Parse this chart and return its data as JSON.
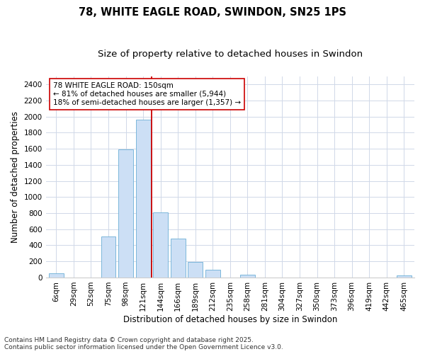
{
  "title": "78, WHITE EAGLE ROAD, SWINDON, SN25 1PS",
  "subtitle": "Size of property relative to detached houses in Swindon",
  "xlabel": "Distribution of detached houses by size in Swindon",
  "ylabel": "Number of detached properties",
  "categories": [
    "6sqm",
    "29sqm",
    "52sqm",
    "75sqm",
    "98sqm",
    "121sqm",
    "144sqm",
    "166sqm",
    "189sqm",
    "212sqm",
    "235sqm",
    "258sqm",
    "281sqm",
    "304sqm",
    "327sqm",
    "350sqm",
    "373sqm",
    "396sqm",
    "419sqm",
    "442sqm",
    "465sqm"
  ],
  "values": [
    55,
    0,
    0,
    510,
    1590,
    1960,
    810,
    480,
    195,
    95,
    0,
    35,
    0,
    0,
    0,
    0,
    0,
    0,
    0,
    0,
    25
  ],
  "bar_color": "#ccdff5",
  "bar_edge_color": "#6baed6",
  "vline_color": "#cc0000",
  "annotation_text": "78 WHITE EAGLE ROAD: 150sqm\n← 81% of detached houses are smaller (5,944)\n18% of semi-detached houses are larger (1,357) →",
  "annotation_box_facecolor": "#ffffff",
  "annotation_box_edgecolor": "#cc0000",
  "ylim": [
    0,
    2500
  ],
  "yticks": [
    0,
    200,
    400,
    600,
    800,
    1000,
    1200,
    1400,
    1600,
    1800,
    2000,
    2200,
    2400
  ],
  "footnote1": "Contains HM Land Registry data © Crown copyright and database right 2025.",
  "footnote2": "Contains public sector information licensed under the Open Government Licence v3.0.",
  "bg_color": "#ffffff",
  "plot_bg_color": "#ffffff",
  "grid_color": "#d0d8e8",
  "title_fontsize": 10.5,
  "subtitle_fontsize": 9.5,
  "axis_label_fontsize": 8.5,
  "tick_fontsize": 7.5,
  "annotation_fontsize": 7.5,
  "footnote_fontsize": 6.5,
  "vline_pos": 5.5
}
